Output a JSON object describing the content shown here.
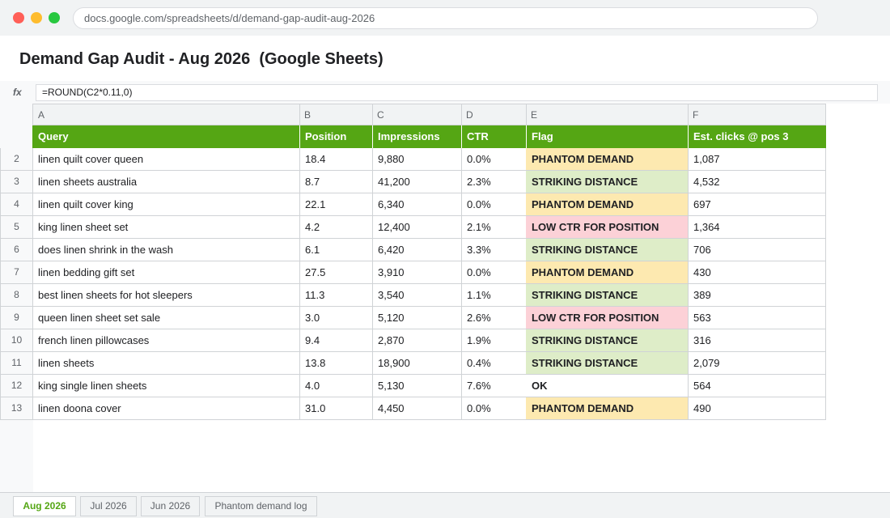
{
  "browser": {
    "url": "docs.google.com/spreadsheets/d/demand-gap-audit-aug-2026"
  },
  "document": {
    "title": "Demand Gap Audit - Aug 2026  (Google Sheets)"
  },
  "formula_bar": {
    "fx_label": "fx",
    "formula": "=ROUND(C2*0.11,0)"
  },
  "columns": [
    "A",
    "B",
    "C",
    "D",
    "E",
    "F"
  ],
  "header": [
    "Query",
    "Position",
    "Impressions",
    "CTR",
    "Flag",
    "Est. clicks @ pos 3"
  ],
  "rows": [
    {
      "num": "2",
      "query": "linen quilt cover queen",
      "position": "18.4",
      "impressions": "9,880",
      "ctr": "0.0%",
      "flag": "PHANTOM DEMAND",
      "flag_type": "phantom",
      "est": "1,087"
    },
    {
      "num": "3",
      "query": "linen sheets australia",
      "position": "8.7",
      "impressions": "41,200",
      "ctr": "2.3%",
      "flag": "STRIKING DISTANCE",
      "flag_type": "striking",
      "est": "4,532"
    },
    {
      "num": "4",
      "query": "linen quilt cover king",
      "position": "22.1",
      "impressions": "6,340",
      "ctr": "0.0%",
      "flag": "PHANTOM DEMAND",
      "flag_type": "phantom",
      "est": "697"
    },
    {
      "num": "5",
      "query": "king linen sheet set",
      "position": "4.2",
      "impressions": "12,400",
      "ctr": "2.1%",
      "flag": "LOW CTR FOR POSITION",
      "flag_type": "low",
      "est": "1,364"
    },
    {
      "num": "6",
      "query": "does linen shrink in the wash",
      "position": "6.1",
      "impressions": "6,420",
      "ctr": "3.3%",
      "flag": "STRIKING DISTANCE",
      "flag_type": "striking",
      "est": "706"
    },
    {
      "num": "7",
      "query": "linen bedding gift set",
      "position": "27.5",
      "impressions": "3,910",
      "ctr": "0.0%",
      "flag": "PHANTOM DEMAND",
      "flag_type": "phantom",
      "est": "430"
    },
    {
      "num": "8",
      "query": "best linen sheets for hot sleepers",
      "position": "11.3",
      "impressions": "3,540",
      "ctr": "1.1%",
      "flag": "STRIKING DISTANCE",
      "flag_type": "striking",
      "est": "389"
    },
    {
      "num": "9",
      "query": "queen linen sheet set sale",
      "position": "3.0",
      "impressions": "5,120",
      "ctr": "2.6%",
      "flag": "LOW CTR FOR POSITION",
      "flag_type": "low",
      "est": "563"
    },
    {
      "num": "10",
      "query": "french linen pillowcases",
      "position": "9.4",
      "impressions": "2,870",
      "ctr": "1.9%",
      "flag": "STRIKING DISTANCE",
      "flag_type": "striking",
      "est": "316"
    },
    {
      "num": "11",
      "query": "linen sheets",
      "position": "13.8",
      "impressions": "18,900",
      "ctr": "0.4%",
      "flag": "STRIKING DISTANCE",
      "flag_type": "striking",
      "est": "2,079"
    },
    {
      "num": "12",
      "query": "king single linen sheets",
      "position": "4.0",
      "impressions": "5,130",
      "ctr": "7.6%",
      "flag": "OK",
      "flag_type": "ok",
      "est": "564"
    },
    {
      "num": "13",
      "query": "linen doona cover",
      "position": "31.0",
      "impressions": "4,450",
      "ctr": "0.0%",
      "flag": "PHANTOM DEMAND",
      "flag_type": "phantom",
      "est": "490"
    }
  ],
  "sheet_tabs": [
    {
      "label": "Aug 2026",
      "active": true
    },
    {
      "label": "Jul 2026",
      "active": false
    },
    {
      "label": "Jun 2026",
      "active": false
    },
    {
      "label": "Phantom demand log",
      "active": false
    }
  ],
  "colors": {
    "header_green": "#55a614",
    "phantom": "#fde9b0",
    "striking": "#deedc8",
    "low_ctr": "#fcd1d7"
  }
}
